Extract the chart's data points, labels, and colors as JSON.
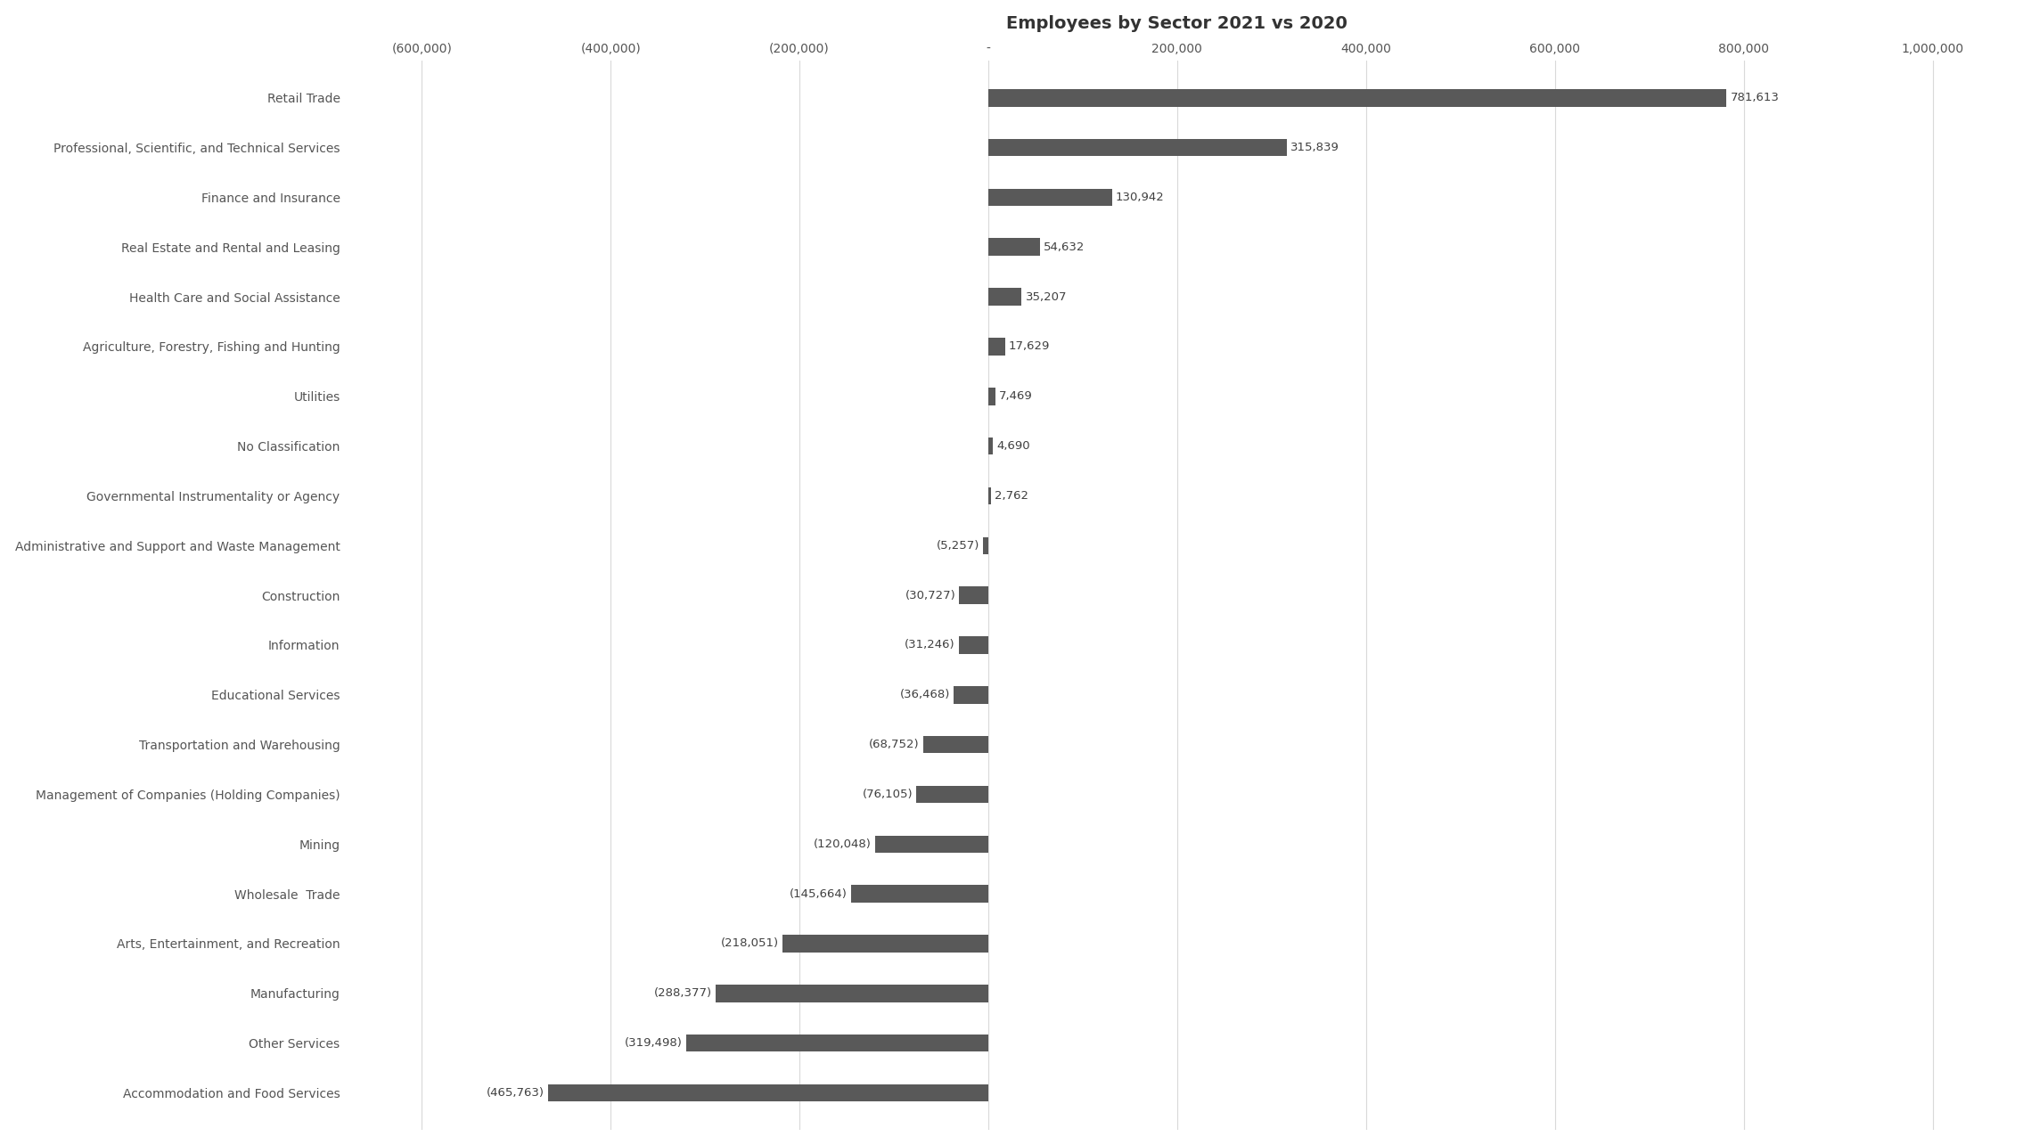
{
  "title": "Employees by Sector 2021 vs 2020",
  "categories": [
    "Retail Trade",
    "Professional, Scientific, and Technical Services",
    "Finance and Insurance",
    "Real Estate and Rental and Leasing",
    "Health Care and Social Assistance",
    "Agriculture, Forestry, Fishing and Hunting",
    "Utilities",
    "No Classification",
    "Governmental Instrumentality or Agency",
    "Administrative and Support and Waste Management",
    "Construction",
    "Information",
    "Educational Services",
    "Transportation and Warehousing",
    "Management of Companies (Holding Companies)",
    "Mining",
    "Wholesale  Trade",
    "Arts, Entertainment, and Recreation",
    "Manufacturing",
    "Other Services",
    "Accommodation and Food Services"
  ],
  "values": [
    781613,
    315839,
    130942,
    54632,
    35207,
    17629,
    7469,
    4690,
    2762,
    -5257,
    -30727,
    -31246,
    -36468,
    -68752,
    -76105,
    -120048,
    -145664,
    -218051,
    -288377,
    -319498,
    -465763
  ],
  "bar_color": "#595959",
  "background_color": "#ffffff",
  "title_fontsize": 14,
  "label_fontsize": 10,
  "tick_fontsize": 10,
  "xlim": [
    -680000,
    1080000
  ],
  "xticks": [
    -600000,
    -400000,
    -200000,
    0,
    200000,
    400000,
    600000,
    800000,
    1000000
  ],
  "xtick_labels": [
    "(600,000)",
    "(400,000)",
    "(200,000)",
    "-",
    "200,000",
    "400,000",
    "600,000",
    "800,000",
    "1,000,000"
  ],
  "grid_color": "#d9d9d9",
  "value_label_fontsize": 9.5
}
